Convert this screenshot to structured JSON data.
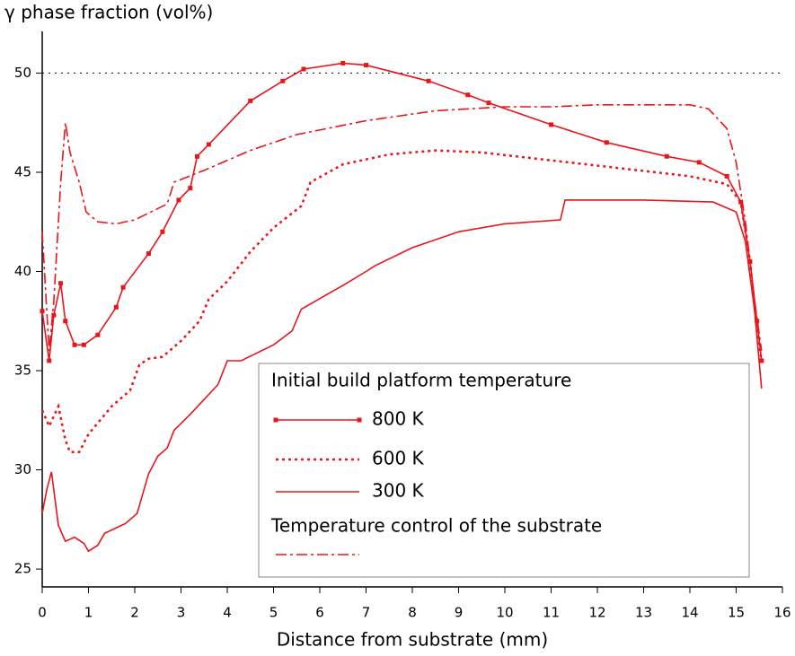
{
  "chart_data": {
    "type": "line",
    "ylabel": "γ phase fraction (vol%)",
    "xlabel": "Distance from substrate (mm)",
    "legend_title": "Initial build platform temperature",
    "xlim": [
      0,
      16
    ],
    "xticks": [
      0,
      1,
      2,
      3,
      4,
      5,
      6,
      7,
      8,
      9,
      10,
      11,
      12,
      13,
      14,
      15,
      16
    ],
    "ylim": [
      24.1,
      52.1
    ],
    "yticks": [
      25,
      30,
      35,
      40,
      45,
      50
    ],
    "reference_line": 50,
    "series": [
      {
        "name": "800 K",
        "color": "#e8151b",
        "style": "solid",
        "marker": "square",
        "x": [
          0,
          0.15,
          0.25,
          0.4,
          0.5,
          0.7,
          0.9,
          1.2,
          1.6,
          1.75,
          2.3,
          2.6,
          2.95,
          3.2,
          3.35,
          3.6,
          4.5,
          5.2,
          5.65,
          6.5,
          7.0,
          8.35,
          9.2,
          9.65,
          11,
          12.2,
          13.5,
          14.2,
          14.8,
          15.1,
          15.3,
          15.45,
          15.55
        ],
        "values": [
          38,
          35.5,
          37.8,
          39.4,
          37.5,
          36.3,
          36.3,
          36.8,
          38.2,
          39.2,
          40.9,
          42,
          43.6,
          44.2,
          45.8,
          46.4,
          48.6,
          49.6,
          50.2,
          50.5,
          50.4,
          49.6,
          48.9,
          48.5,
          47.4,
          46.5,
          45.8,
          45.5,
          44.8,
          43.5,
          40.5,
          37.5,
          35.5
        ]
      },
      {
        "name": "600 K",
        "color": "#e8151b",
        "style": "dotted",
        "x": [
          0,
          0.15,
          0.35,
          0.5,
          0.6,
          0.8,
          1.0,
          1.5,
          1.9,
          2.1,
          2.3,
          2.6,
          3.0,
          3.4,
          3.6,
          4.0,
          4.5,
          5.0,
          5.6,
          5.8,
          6.5,
          7.5,
          8.5,
          9.5,
          11,
          12.5,
          14,
          14.8,
          15.1,
          15.3,
          15.45,
          15.55
        ],
        "values": [
          33,
          32.2,
          33.2,
          31.5,
          30.9,
          30.9,
          31.8,
          33.2,
          34,
          35.3,
          35.6,
          35.7,
          36.5,
          37.5,
          38.6,
          39.5,
          41,
          42.2,
          43.3,
          44.5,
          45.4,
          45.9,
          46.1,
          46,
          45.6,
          45.2,
          44.8,
          44.4,
          43.5,
          40.5,
          37,
          35.5
        ]
      },
      {
        "name": "300 K",
        "color": "#e8151b",
        "style": "solid",
        "x": [
          0,
          0.1,
          0.2,
          0.35,
          0.5,
          0.7,
          0.9,
          1.0,
          1.2,
          1.35,
          1.8,
          2.05,
          2.3,
          2.5,
          2.7,
          2.85,
          3.2,
          3.8,
          4.0,
          4.3,
          5.0,
          5.4,
          5.6,
          6.5,
          7.0,
          7.2,
          8.0,
          9,
          10,
          11.2,
          11.3,
          13,
          14.5,
          15.0,
          15.2,
          15.4,
          15.55
        ],
        "values": [
          27.8,
          29,
          29.9,
          27.2,
          26.4,
          26.6,
          26.3,
          25.9,
          26.2,
          26.8,
          27.3,
          27.8,
          29.8,
          30.7,
          31.1,
          32.0,
          32.8,
          34.3,
          35.5,
          35.5,
          36.3,
          37,
          38.1,
          39.3,
          40,
          40.3,
          41.2,
          42,
          42.4,
          42.6,
          43.6,
          43.6,
          43.5,
          43.0,
          41.5,
          38,
          34.1
        ]
      },
      {
        "name": "Temperature control of the substrate",
        "color": "#e8151b",
        "style": "dashdot",
        "x": [
          0,
          0.1,
          0.15,
          0.25,
          0.4,
          0.5,
          0.6,
          0.8,
          0.95,
          1.2,
          1.6,
          2.0,
          2.7,
          2.85,
          3.5,
          4.5,
          5.5,
          7,
          8.5,
          10,
          11,
          12,
          13,
          14,
          14.4,
          14.8,
          15.0,
          15.2,
          15.4,
          15.55
        ],
        "values": [
          42,
          38,
          36,
          38.5,
          44.5,
          47.5,
          46,
          44.5,
          43,
          42.5,
          42.4,
          42.6,
          43.4,
          44.5,
          45.1,
          46.1,
          46.9,
          47.6,
          48.1,
          48.3,
          48.3,
          48.4,
          48.4,
          48.4,
          48.2,
          47.2,
          45.5,
          42.5,
          38.5,
          36
        ]
      }
    ]
  }
}
